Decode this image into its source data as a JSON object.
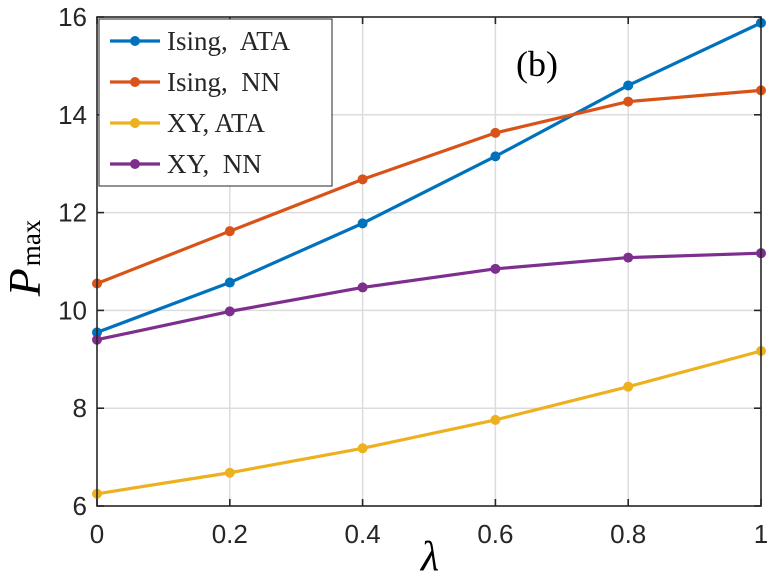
{
  "chart_data": {
    "type": "line",
    "title": "",
    "panel_label": "(b)",
    "xlabel": "λ",
    "ylabel": "P",
    "ylabel_sub": "max",
    "xlim": [
      0,
      1
    ],
    "ylim": [
      6,
      16
    ],
    "grid": true,
    "legend_position": "top-left",
    "x_ticks": [
      0,
      0.2,
      0.4,
      0.6,
      0.8,
      1
    ],
    "x_tick_labels": [
      "0",
      "0.2",
      "0.4",
      "0.6",
      "0.8",
      "1"
    ],
    "y_ticks": [
      6,
      8,
      10,
      12,
      14,
      16
    ],
    "y_tick_labels": [
      "6",
      "8",
      "10",
      "12",
      "14",
      "16"
    ],
    "x": [
      0,
      0.2,
      0.4,
      0.6,
      0.8,
      1
    ],
    "series": [
      {
        "name": "Ising,  ATA",
        "color": "#0072BD",
        "values": [
          9.55,
          10.57,
          11.78,
          13.15,
          14.6,
          15.88
        ]
      },
      {
        "name": "Ising,  NN",
        "color": "#D95319",
        "values": [
          10.55,
          11.62,
          12.68,
          13.63,
          14.27,
          14.5
        ]
      },
      {
        "name": "XY, ATA",
        "color": "#EDB120",
        "values": [
          6.25,
          6.68,
          7.18,
          7.76,
          8.44,
          9.17
        ]
      },
      {
        "name": "XY,  NN",
        "color": "#7E2F8E",
        "values": [
          9.4,
          9.98,
          10.47,
          10.85,
          11.08,
          11.17
        ]
      }
    ]
  }
}
